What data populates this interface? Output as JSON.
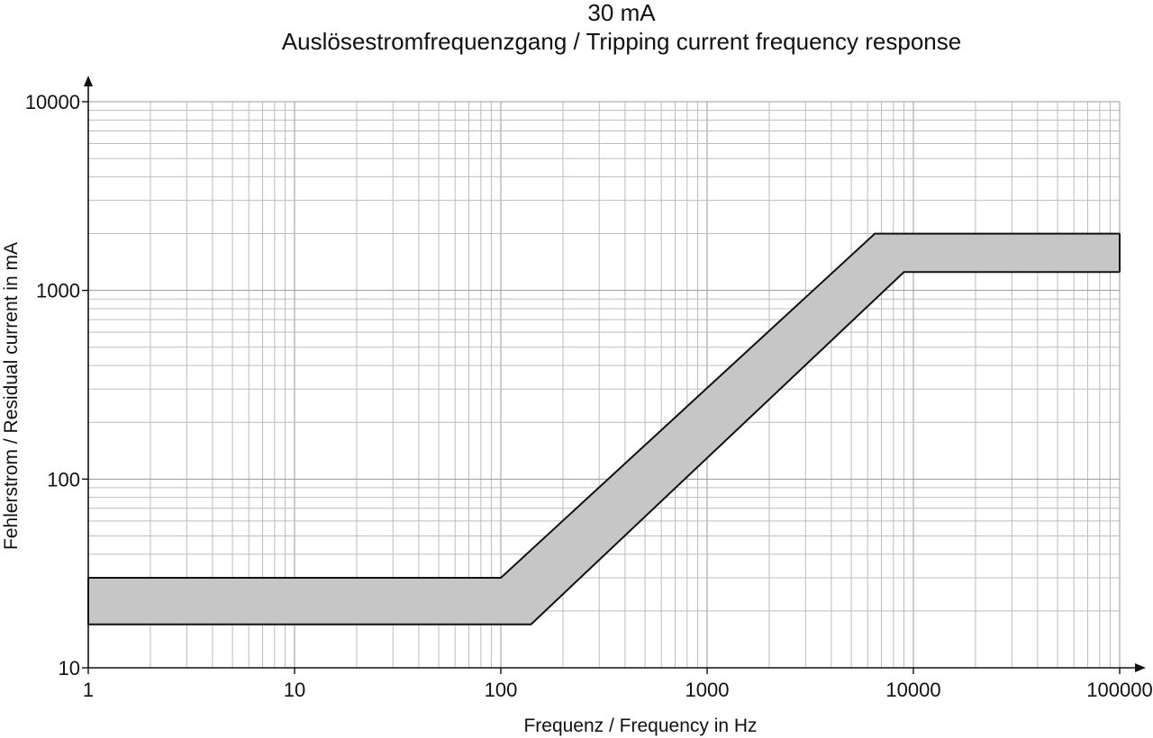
{
  "chart_data": {
    "type": "area",
    "title": "30 mA",
    "subtitle": "Auslösestromfrequenzgang / Tripping current frequency response",
    "xlabel": "Frequenz /  Frequency in Hz",
    "ylabel": "Fehlerstrom /  Residual current in mA",
    "xscale": "log",
    "yscale": "log",
    "xlim": [
      1,
      100000
    ],
    "ylim": [
      10,
      10000
    ],
    "x_tick_labels": [
      "1",
      "10",
      "100",
      "1000",
      "10000",
      "100000"
    ],
    "y_tick_labels": [
      "10",
      "100",
      "1000",
      "10000"
    ],
    "grid": true,
    "legend": "none",
    "band_color": "#c6c6c6",
    "series": [
      {
        "x": [
          1,
          100,
          6500,
          100000
        ],
        "y": [
          30,
          30,
          2000,
          2000
        ]
      },
      {
        "x": [
          1,
          140,
          9000,
          100000
        ],
        "y": [
          17,
          17,
          1250,
          1250
        ]
      }
    ]
  }
}
